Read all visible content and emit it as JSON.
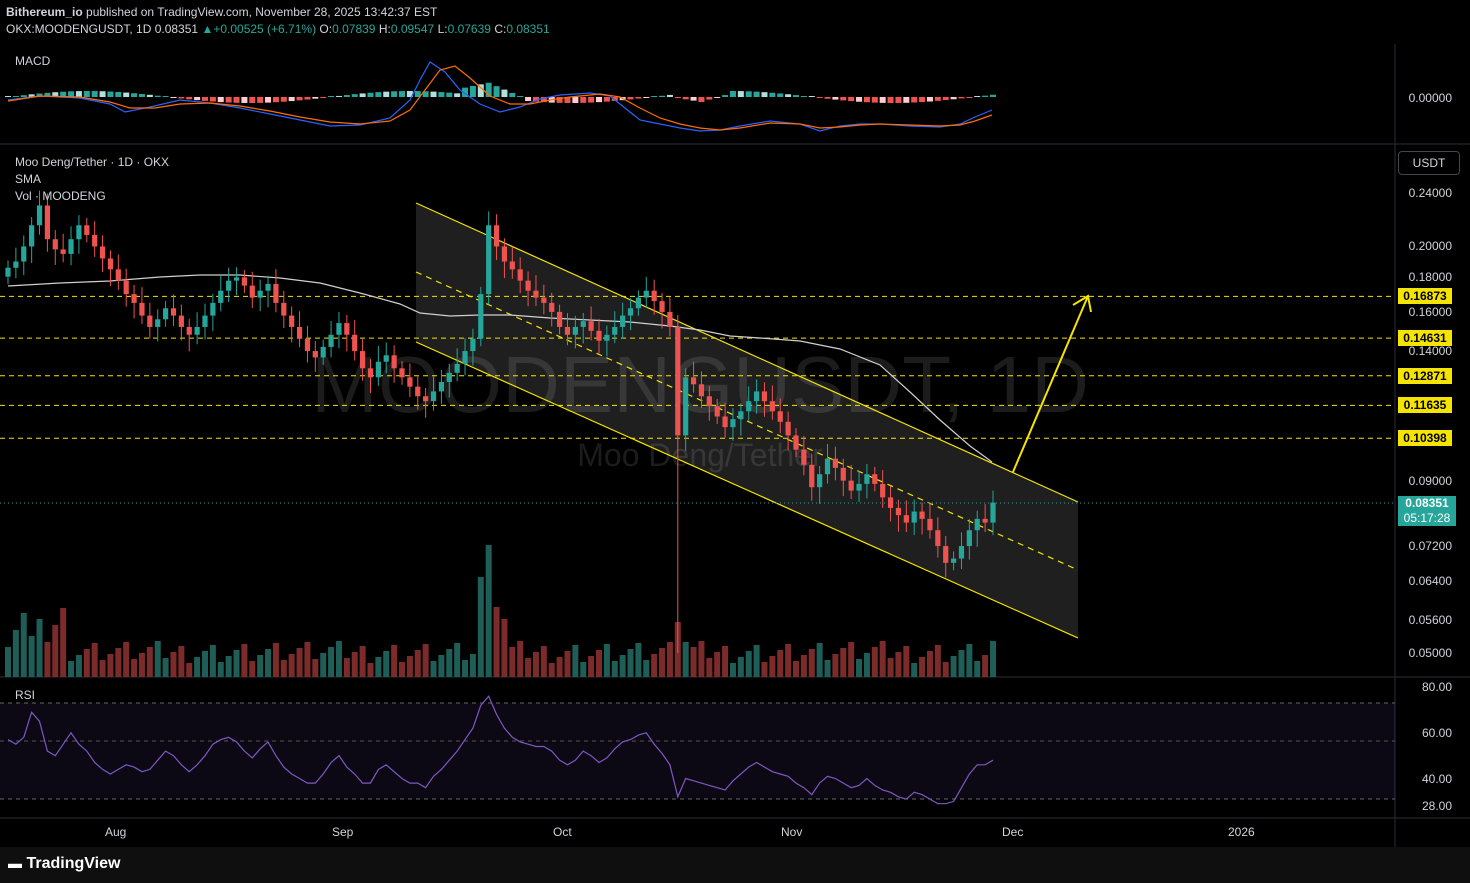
{
  "header": {
    "publisher": "Bithereum_io",
    "published_line": "published on TradingView.com, November 28, 2025 13:42:37 EST",
    "symbol": "OKX:MOODENGUSDT, 1D",
    "last": "0.08351",
    "change": "+0.00525 (+6.71%)",
    "o_label": "O:",
    "o": "0.07839",
    "h_label": "H:",
    "h": "0.09547",
    "l_label": "L:",
    "l": "0.07639",
    "c_label": "C:",
    "c": "0.08351"
  },
  "panels": {
    "macd_label": "MACD",
    "macd_value": "0.00000",
    "main_title": "Moo Deng/Tether · 1D · OKX",
    "sma_label": "SMA",
    "vol_label": "Vol · MOODENG",
    "rsi_label": "RSI",
    "currency": "USDT"
  },
  "watermark": {
    "big": "MOODENGUSDT, 1D",
    "small": "Moo Deng/Tether"
  },
  "price_axis": {
    "ticks": [
      "0.24000",
      "0.20000",
      "0.18000",
      "0.16000",
      "0.14000",
      "0.09000",
      "0.07200",
      "0.06400",
      "0.05600",
      "0.05000"
    ],
    "levels": [
      "0.16873",
      "0.14631",
      "0.12871",
      "0.11635",
      "0.10398"
    ],
    "current_price": "0.08351",
    "countdown": "05:17:28"
  },
  "rsi_axis": {
    "ticks": [
      "80.00",
      "60.00",
      "40.00",
      "28.00"
    ]
  },
  "time_axis": {
    "labels": [
      "Aug",
      "Sep",
      "Oct",
      "Nov",
      "Dec",
      "2026"
    ]
  },
  "brand": {
    "name": "TradingView"
  },
  "colors": {
    "up": "#26a69a",
    "down": "#ef5350",
    "level": "#f5e400",
    "rsi": "#7e57c2",
    "sma": "#e0e0e0",
    "bg": "#000000"
  },
  "chart_data": {
    "type": "candlestick",
    "symbol": "OKX:MOODENGUSDT",
    "timeframe": "1D",
    "last_candle": {
      "open": 0.07839,
      "high": 0.09547,
      "low": 0.07639,
      "close": 0.08351,
      "change": 0.00525,
      "change_pct": 6.71
    },
    "price_scale": "log",
    "support_resistance_levels": [
      0.16873,
      0.14631,
      0.12871,
      0.11635,
      0.10398
    ],
    "closes": [
      0.186,
      0.19,
      0.2,
      0.215,
      0.23,
      0.205,
      0.198,
      0.195,
      0.205,
      0.215,
      0.208,
      0.2,
      0.192,
      0.185,
      0.178,
      0.17,
      0.165,
      0.158,
      0.152,
      0.156,
      0.162,
      0.158,
      0.152,
      0.148,
      0.152,
      0.158,
      0.165,
      0.172,
      0.178,
      0.18,
      0.175,
      0.168,
      0.172,
      0.176,
      0.165,
      0.158,
      0.152,
      0.146,
      0.14,
      0.137,
      0.142,
      0.148,
      0.154,
      0.148,
      0.14,
      0.132,
      0.128,
      0.135,
      0.138,
      0.132,
      0.128,
      0.124,
      0.12,
      0.118,
      0.122,
      0.126,
      0.13,
      0.134,
      0.14,
      0.146,
      0.17,
      0.215,
      0.2,
      0.19,
      0.185,
      0.178,
      0.172,
      0.168,
      0.165,
      0.16,
      0.152,
      0.148,
      0.152,
      0.155,
      0.15,
      0.145,
      0.148,
      0.152,
      0.158,
      0.162,
      0.168,
      0.172,
      0.166,
      0.16,
      0.152,
      0.105,
      0.128,
      0.125,
      0.12,
      0.116,
      0.112,
      0.108,
      0.111,
      0.114,
      0.118,
      0.122,
      0.118,
      0.114,
      0.11,
      0.105,
      0.1,
      0.095,
      0.088,
      0.092,
      0.097,
      0.094,
      0.09,
      0.087,
      0.089,
      0.092,
      0.089,
      0.085,
      0.082,
      0.08,
      0.078,
      0.081,
      0.079,
      0.076,
      0.072,
      0.068,
      0.069,
      0.072,
      0.076,
      0.079,
      0.078,
      0.08351
    ],
    "rsi": [
      57,
      55,
      58,
      69,
      65,
      52,
      50,
      55,
      60,
      55,
      52,
      47,
      44,
      42,
      44,
      46,
      45,
      43,
      44,
      48,
      52,
      50,
      46,
      43,
      46,
      50,
      55,
      57,
      58,
      56,
      52,
      49,
      53,
      56,
      50,
      45,
      42,
      40,
      38,
      38,
      42,
      47,
      50,
      45,
      42,
      38,
      38,
      44,
      46,
      43,
      40,
      38,
      38,
      36,
      41,
      44,
      48,
      52,
      57,
      62,
      72,
      76,
      68,
      62,
      58,
      56,
      55,
      54,
      54,
      52,
      48,
      46,
      48,
      52,
      50,
      47,
      49,
      53,
      56,
      57,
      59,
      60,
      55,
      51,
      46,
      32,
      40,
      39,
      38,
      37,
      36,
      35,
      39,
      42,
      45,
      47,
      45,
      43,
      42,
      41,
      38,
      36,
      33,
      38,
      41,
      40,
      38,
      36,
      37,
      40,
      37,
      35,
      34,
      32,
      31,
      34,
      33,
      31,
      29,
      29,
      30,
      36,
      42,
      46,
      46,
      48
    ],
    "rsi_levels": [
      70,
      50,
      30
    ],
    "time_labels": [
      "Aug",
      "Sep",
      "Oct",
      "Nov",
      "Dec",
      "2026"
    ]
  }
}
